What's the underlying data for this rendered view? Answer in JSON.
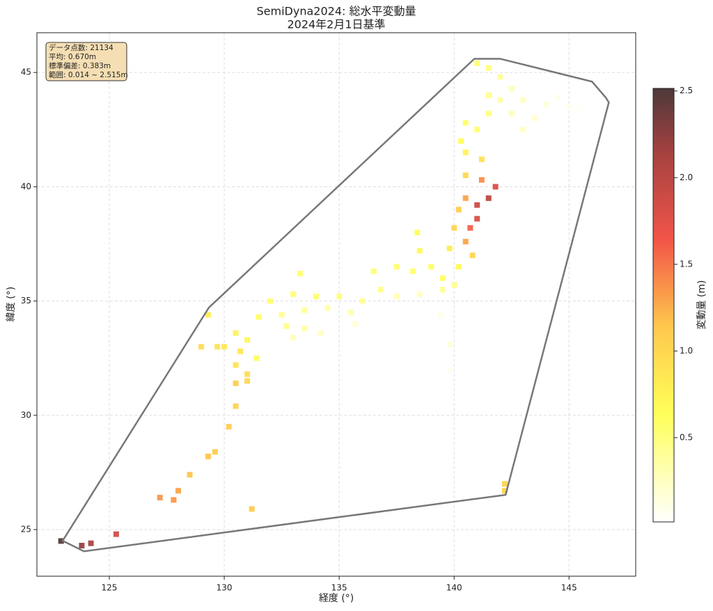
{
  "chart_data": {
    "type": "scatter",
    "title": "SemiDyna2024: 総水平変動量",
    "subtitle": "2024年2月1日基準",
    "x_label": "経度 (°)",
    "y_label": "緯度 (°)",
    "colorbar_label": "変動量 (m)",
    "colormap": "hot_r",
    "grid": true,
    "xlim": [
      121.85,
      147.9
    ],
    "ylim": [
      22.96,
      46.74
    ],
    "xticks": [
      125,
      130,
      135,
      140,
      145
    ],
    "yticks": [
      25,
      30,
      35,
      40,
      45
    ],
    "clim": [
      0.014,
      2.515
    ],
    "cticks": [
      {
        "value": 0.5,
        "label": "0.5"
      },
      {
        "value": 1.0,
        "label": "1.0"
      },
      {
        "value": 1.5,
        "label": "1.5"
      },
      {
        "value": 2.0,
        "label": "2.0"
      },
      {
        "value": 2.5,
        "label": "2.5"
      }
    ],
    "stats": [
      "データ点数: 21134",
      "平均: 0.670m",
      "標準偏差: 0.383m",
      "範囲: 0.014 ~ 2.515m"
    ],
    "hull": {
      "color": "#777777",
      "x": [
        122.97,
        123.9,
        142.24,
        146.73,
        146.6,
        146.0,
        142.0,
        140.88,
        129.33
      ],
      "y": [
        24.51,
        24.05,
        26.52,
        43.69,
        43.9,
        44.6,
        45.6,
        45.6,
        34.71
      ]
    },
    "x": [
      141.0,
      141.5,
      142.0,
      142.5,
      141.5,
      142.0,
      143.0,
      144.0,
      145.0,
      145.5,
      141.5,
      142.5,
      143.5,
      140.5,
      141.0,
      140.3,
      143.0,
      144.5,
      146.0,
      140.5,
      141.2,
      140.5,
      141.2,
      141.8,
      141.5,
      141.0,
      140.5,
      140.2,
      141.0,
      140.7,
      140.0,
      140.5,
      140.8,
      139.8,
      140.2,
      139.5,
      140.0,
      139.5,
      139.0,
      138.5,
      138.2,
      137.5,
      138.5,
      137.5,
      136.8,
      136.5,
      138.4,
      139.4,
      139.8,
      139.8,
      136.0,
      135.5,
      135.7,
      135.0,
      134.0,
      133.0,
      132.0,
      131.5,
      132.5,
      133.5,
      134.5,
      133.5,
      133.0,
      134.2,
      132.7,
      133.3,
      130.5,
      131.0,
      130.0,
      130.7,
      131.4,
      130.5,
      131.0,
      130.5,
      131.0,
      129.7,
      129.3,
      129.0,
      130.5,
      130.2,
      129.6,
      129.3,
      128.5,
      128.0,
      127.8,
      127.2,
      131.2,
      142.2,
      142.2,
      125.3,
      124.2,
      123.8,
      122.9
    ],
    "y": [
      45.4,
      45.2,
      44.8,
      44.3,
      44.0,
      43.8,
      43.8,
      43.6,
      43.5,
      43.4,
      43.2,
      43.2,
      43.0,
      42.8,
      42.5,
      42.0,
      42.5,
      43.9,
      44.0,
      41.5,
      41.2,
      40.5,
      40.3,
      40.0,
      39.5,
      39.2,
      39.5,
      39.0,
      38.6,
      38.2,
      38.2,
      37.6,
      37.0,
      37.3,
      36.5,
      36.0,
      35.7,
      35.5,
      36.5,
      37.2,
      36.3,
      36.5,
      35.3,
      35.2,
      35.5,
      36.3,
      38.0,
      34.4,
      33.1,
      32.0,
      35.0,
      34.5,
      34.0,
      35.2,
      35.2,
      35.3,
      35.0,
      34.3,
      34.4,
      34.6,
      34.7,
      33.8,
      33.4,
      33.6,
      33.9,
      36.2,
      33.6,
      33.3,
      33.0,
      32.8,
      32.5,
      32.2,
      31.8,
      31.4,
      31.5,
      33.0,
      34.4,
      33.0,
      30.4,
      29.5,
      28.4,
      28.2,
      27.4,
      26.7,
      26.3,
      26.4,
      25.9,
      27.0,
      26.7,
      24.8,
      24.4,
      24.3,
      24.5
    ],
    "values": [
      0.55,
      0.5,
      0.4,
      0.3,
      0.45,
      0.35,
      0.25,
      0.15,
      0.08,
      0.05,
      0.5,
      0.3,
      0.2,
      0.6,
      0.55,
      0.65,
      0.25,
      0.1,
      0.04,
      0.75,
      0.9,
      1.0,
      1.4,
      1.8,
      2.0,
      1.9,
      1.3,
      1.1,
      1.8,
      1.6,
      1.0,
      1.3,
      1.0,
      0.8,
      0.7,
      0.6,
      0.45,
      0.4,
      0.6,
      0.7,
      0.55,
      0.55,
      0.25,
      0.3,
      0.45,
      0.55,
      0.65,
      0.1,
      0.15,
      0.08,
      0.4,
      0.3,
      0.2,
      0.5,
      0.55,
      0.55,
      0.55,
      0.6,
      0.45,
      0.4,
      0.35,
      0.35,
      0.3,
      0.25,
      0.45,
      0.55,
      0.75,
      0.7,
      0.85,
      0.85,
      0.6,
      0.9,
      0.95,
      1.1,
      1.0,
      0.9,
      0.8,
      0.95,
      1.05,
      1.1,
      1.1,
      1.15,
      1.15,
      1.3,
      1.35,
      1.35,
      1.1,
      1.05,
      1.05,
      1.85,
      2.1,
      2.2,
      2.5
    ]
  }
}
